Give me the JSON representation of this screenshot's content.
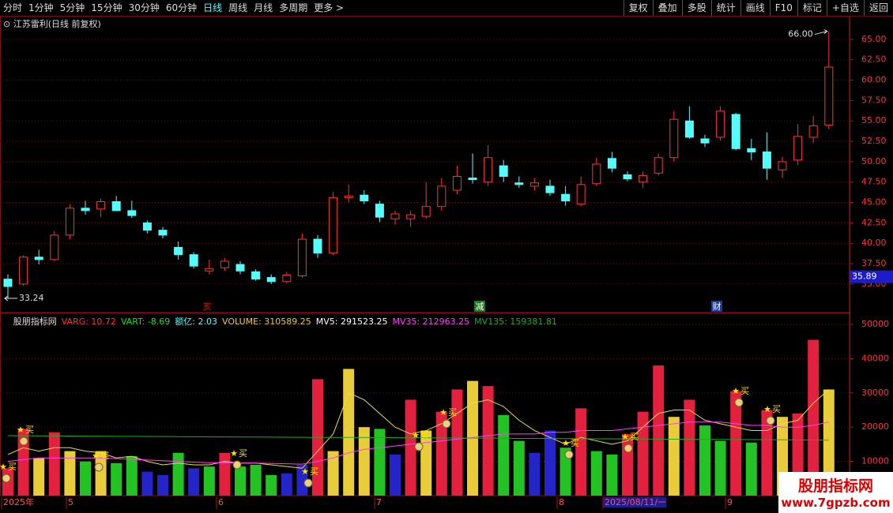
{
  "toolbar": {
    "periods": [
      "分时",
      "1分钟",
      "5分钟",
      "15分钟",
      "30分钟",
      "60分钟",
      "日线",
      "周线",
      "月线",
      "多周期",
      "更多 >"
    ],
    "tools": [
      "复权",
      "叠加",
      "多股",
      "统计",
      "画线",
      "F10",
      "标记",
      "+自选",
      "返回"
    ]
  },
  "watermark": {
    "title": "股朋指标网",
    "url": "www.7gpzb.com"
  },
  "chart_data": [
    {
      "type": "candlestick",
      "title": "江苏雷利(日线 前复权)",
      "open": [
        35.6,
        35.0,
        38.3,
        38.0,
        41.0,
        44.3,
        44.2,
        45.1,
        44.0,
        42.5,
        41.6,
        39.5,
        38.6,
        36.6,
        37.0,
        37.4,
        36.5,
        35.8,
        35.3,
        36.0,
        40.5,
        38.8,
        45.6,
        45.9,
        44.8,
        43.0,
        43.0,
        43.3,
        44.5,
        46.5,
        48.0,
        47.5,
        49.5,
        47.4,
        47.0,
        47.0,
        46.0,
        44.8,
        47.3,
        50.4,
        48.4,
        47.5,
        48.6,
        50.5,
        55.0,
        52.8,
        53.0,
        55.8,
        51.6,
        51.2,
        49.0,
        50.2,
        53.0,
        54.5
      ],
      "high": [
        36.2,
        38.5,
        39.2,
        41.5,
        44.8,
        45.2,
        45.5,
        45.8,
        45.2,
        42.8,
        42.0,
        40.2,
        38.9,
        38.0,
        38.2,
        37.8,
        36.8,
        36.2,
        36.5,
        41.2,
        41.0,
        46.3,
        47.2,
        46.5,
        45.2,
        44.0,
        44.0,
        47.5,
        48.0,
        49.5,
        51.0,
        52.0,
        50.2,
        48.2,
        48.0,
        47.8,
        47.0,
        48.2,
        50.5,
        51.2,
        48.8,
        48.8,
        51.0,
        56.2,
        56.8,
        53.3,
        56.8,
        56.0,
        52.8,
        53.6,
        50.6,
        54.6,
        55.6,
        66.0
      ],
      "low": [
        33.24,
        34.8,
        37.4,
        37.8,
        40.5,
        43.5,
        43.2,
        44.0,
        43.1,
        41.2,
        40.6,
        38.0,
        36.9,
        36.2,
        36.6,
        36.2,
        35.4,
        35.0,
        35.1,
        35.8,
        38.2,
        38.5,
        45.0,
        44.8,
        42.6,
        42.3,
        42.0,
        43.0,
        44.0,
        46.0,
        47.3,
        47.0,
        47.5,
        46.8,
        46.5,
        45.8,
        44.6,
        44.5,
        47.0,
        48.7,
        47.6,
        46.8,
        48.3,
        50.0,
        52.8,
        51.8,
        52.6,
        51.4,
        50.2,
        47.8,
        48.0,
        49.6,
        52.3,
        54.0
      ],
      "close": [
        34.7,
        38.3,
        38.0,
        41.0,
        44.3,
        44.0,
        45.1,
        44.0,
        43.4,
        41.6,
        41.0,
        38.6,
        37.2,
        36.9,
        37.8,
        36.6,
        35.6,
        35.3,
        36.1,
        40.5,
        38.8,
        45.6,
        45.8,
        45.2,
        43.2,
        43.6,
        43.5,
        44.5,
        47.0,
        48.2,
        47.8,
        50.5,
        48.2,
        47.2,
        47.4,
        46.2,
        45.2,
        47.2,
        49.7,
        49.2,
        47.9,
        48.3,
        50.5,
        55.2,
        53.0,
        52.3,
        56.2,
        51.6,
        51.2,
        49.2,
        50.0,
        53.1,
        54.4,
        61.6
      ],
      "up_color": "#ff3232",
      "down_color": "#54fcfc",
      "ylim": [
        31.6,
        67.7
      ],
      "yticks": [
        {
          "value": 35,
          "label": "35.00"
        },
        {
          "value": 37.5,
          "label": "37.50"
        },
        {
          "value": 40,
          "label": "40.00"
        },
        {
          "value": 42.5,
          "label": "42.50"
        },
        {
          "value": 45,
          "label": "45.00"
        },
        {
          "value": 47.5,
          "label": "47.50"
        },
        {
          "value": 50,
          "label": "50.00"
        },
        {
          "value": 52.5,
          "label": "52.50"
        },
        {
          "value": 55,
          "label": "55.00"
        },
        {
          "value": 57.5,
          "label": "57.50"
        },
        {
          "value": 60,
          "label": "60.00"
        },
        {
          "value": 62.5,
          "label": "62.50"
        },
        {
          "value": 65,
          "label": "65.00"
        }
      ],
      "grid": true,
      "high_mark": {
        "value": 66,
        "label": "66.00"
      },
      "low_mark": 33.24,
      "price_marker": 35.89,
      "events": [
        "亥",
        "减",
        "财"
      ]
    },
    {
      "type": "bar",
      "title": "股朋指标网",
      "indicators": [
        {
          "text": "VARG: 10.72",
          "color": "#ff3232"
        },
        {
          "text": "VART: -8.69",
          "color": "#22dd22"
        },
        {
          "text": "额亿: 2.03",
          "color": "#54fcfc"
        },
        {
          "text": "VOLUME: 310589.25",
          "color": "#e8cc3a"
        },
        {
          "text": "MV5: 291523.25",
          "color": "#ffffff"
        },
        {
          "text": "MV35: 212963.25",
          "color": "#ff40ff"
        },
        {
          "text": "MV135: 159381.81",
          "color": "#22aa22"
        }
      ],
      "values": [
        8000,
        19500,
        11000,
        18500,
        13000,
        10000,
        13000,
        9500,
        11500,
        7000,
        6000,
        12500,
        8000,
        8500,
        12500,
        8500,
        9000,
        6000,
        6500,
        9000,
        34000,
        13000,
        37000,
        20000,
        19500,
        12000,
        28000,
        19000,
        24500,
        31000,
        33500,
        32000,
        23500,
        16000,
        12500,
        19000,
        14000,
        25500,
        13000,
        12000,
        18000,
        24500,
        38000,
        23000,
        28000,
        20500,
        16000,
        30500,
        15500,
        25000,
        23000,
        24000,
        45500,
        31000
      ],
      "colors": [
        "#e3213f",
        "#e3213f",
        "#e8cc3a",
        "#e3213f",
        "#e8cc3a",
        "#22c322",
        "#e8cc3a",
        "#22c322",
        "#22c322",
        "#2424c8",
        "#2424c8",
        "#22c322",
        "#2424c8",
        "#22c322",
        "#e3213f",
        "#22c322",
        "#22c322",
        "#22c322",
        "#2424c8",
        "#2424c8",
        "#e3213f",
        "#e8cc3a",
        "#e8cc3a",
        "#e8cc3a",
        "#22c322",
        "#2424c8",
        "#e3213f",
        "#e8cc3a",
        "#e3213f",
        "#e3213f",
        "#e8cc3a",
        "#e3213f",
        "#22c322",
        "#22c322",
        "#2424c8",
        "#2424c8",
        "#22c322",
        "#e3213f",
        "#22c322",
        "#22c322",
        "#e3213f",
        "#e3213f",
        "#e3213f",
        "#e8cc3a",
        "#e3213f",
        "#22c322",
        "#22c322",
        "#e3213f",
        "#22c322",
        "#e3213f",
        "#e8cc3a",
        "#e3213f",
        "#e3213f",
        "#e8cc3a"
      ],
      "series": [
        {
          "color": "#e8e040",
          "values": [
            12000,
            14000,
            13000,
            14000,
            14000,
            13000,
            12500,
            11000,
            11500,
            10000,
            9000,
            9500,
            9000,
            9000,
            10000,
            9500,
            9500,
            9000,
            8500,
            8000,
            13000,
            18000,
            30000,
            28000,
            24000,
            20000,
            18000,
            19000,
            21000,
            24000,
            27000,
            28000,
            26000,
            22000,
            19000,
            17000,
            15000,
            17000,
            16000,
            15000,
            16000,
            20000,
            24000,
            25000,
            25000,
            22000,
            21000,
            20000,
            19000,
            19000,
            21000,
            22000,
            27000,
            31000
          ]
        },
        {
          "color": "#ff40ff",
          "values": [
            10000,
            10500,
            11000,
            11000,
            11000,
            11000,
            11000,
            10800,
            10600,
            10400,
            10200,
            10000,
            9800,
            9600,
            9600,
            9500,
            9500,
            9400,
            9300,
            9200,
            10000,
            11000,
            12500,
            13500,
            14000,
            14500,
            15000,
            15500,
            16000,
            16500,
            17000,
            17500,
            18000,
            18000,
            18000,
            18500,
            18500,
            19000,
            19000,
            19000,
            19500,
            20000,
            20500,
            21000,
            21500,
            21500,
            21500,
            21000,
            20500,
            20500,
            20000,
            20000,
            20500,
            21500
          ]
        },
        {
          "color": "#22aa22",
          "values": [
            17500,
            17480,
            17450,
            17420,
            17400,
            17380,
            17350,
            17320,
            17300,
            17280,
            17250,
            17220,
            17200,
            17180,
            17150,
            17120,
            17100,
            17080,
            17050,
            17020,
            17000,
            17000,
            17000,
            16980,
            16950,
            16920,
            16900,
            16880,
            16850,
            16820,
            16800,
            16780,
            16750,
            16720,
            16700,
            16680,
            16650,
            16620,
            16600,
            16580,
            16550,
            16520,
            16500,
            16480,
            16450,
            16420,
            16400,
            16380,
            16350,
            16320,
            16300,
            16280,
            16250,
            16200
          ]
        }
      ],
      "ylim": [
        0,
        53000
      ],
      "yticks": [
        10000,
        20000,
        30000,
        40000,
        50000
      ],
      "grid": true,
      "signal_label": "买",
      "x_labels": [
        "2025年",
        "5",
        "6",
        "7",
        "8",
        "2025/08/11/一",
        "9"
      ]
    }
  ]
}
